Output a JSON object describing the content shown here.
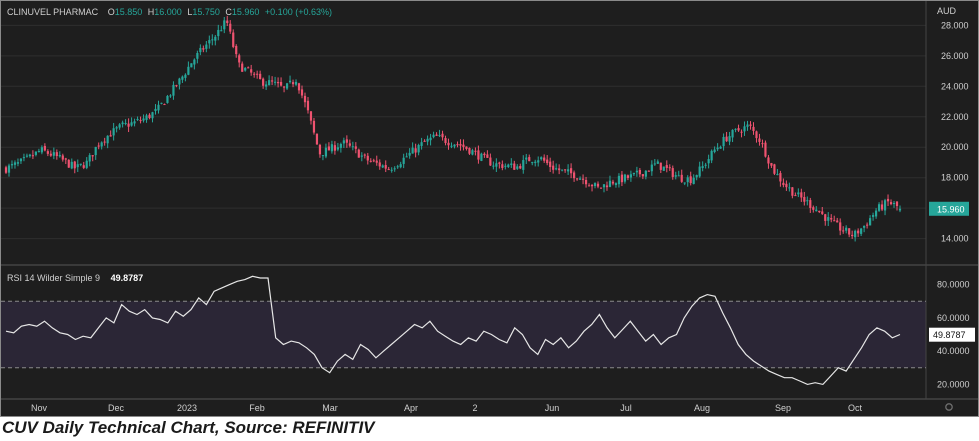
{
  "header": {
    "symbol": "CLINUVEL PHARMAC",
    "open_label": "O",
    "open": "15.850",
    "high_label": "H",
    "high": "16.000",
    "low_label": "L",
    "low": "15.750",
    "close_label": "C",
    "close": "15.960",
    "change": "+0.100 (+0.63%)",
    "currency": "AUD"
  },
  "rsi_header": {
    "label": "RSI 14 Wilder Simple 9",
    "value": "49.8787"
  },
  "caption": "CUV Daily Technical Chart, Source: REFINITIV",
  "colors": {
    "up": "#26a69a",
    "down": "#ef5370",
    "background": "#1e1e1e",
    "rsi_band": "#2b2636",
    "rsi_line": "#e6e6e6"
  },
  "chart_data": [
    {
      "type": "candlestick",
      "title": "CLINUVEL PHARMAC",
      "y_axis_unit": "AUD",
      "yticks": [
        "14.000",
        "16.000",
        "18.000",
        "20.000",
        "22.000",
        "24.000",
        "26.000",
        "28.000"
      ],
      "ylim": [
        12.4,
        29.6
      ],
      "last_price_label": "15.960",
      "xticks": [
        "Nov",
        "Dec",
        "2023",
        "Feb",
        "Mar",
        "Apr",
        "2",
        "Jun",
        "Jul",
        "Aug",
        "Sep",
        "Oct"
      ],
      "path_close": [
        18.6,
        18.9,
        19.3,
        19.8,
        19.5,
        19.1,
        18.6,
        19.0,
        20.3,
        20.9,
        21.4,
        21.6,
        21.9,
        22.4,
        23.4,
        24.4,
        25.6,
        26.5,
        27.3,
        28.3,
        25.4,
        24.9,
        24.3,
        24.2,
        23.8,
        24.5,
        22.3,
        19.6,
        19.9,
        20.3,
        19.8,
        19.2,
        18.9,
        18.6,
        19.1,
        19.7,
        20.3,
        20.7,
        20.4,
        20.2,
        19.8,
        19.3,
        18.9,
        18.8,
        18.7,
        19.2,
        19.3,
        18.7,
        18.4,
        18.2,
        17.8,
        17.3,
        17.7,
        17.9,
        18.1,
        18.4,
        18.9,
        18.5,
        18.0,
        17.9,
        18.7,
        19.8,
        20.6,
        21.1,
        21.4,
        20.4,
        18.6,
        17.6,
        16.9,
        16.4,
        15.8,
        15.1,
        14.6,
        14.2,
        14.9,
        15.9,
        16.4,
        16.0
      ],
      "rsi_panel": {
        "title": "RSI 14 Wilder Simple 9",
        "last_value": "49.8787",
        "yticks": [
          "20.0000",
          "40.0000",
          "60.0000",
          "80.0000"
        ],
        "ylim": [
          11.2,
          90.6
        ],
        "overbought": 70,
        "oversold": 30,
        "values": [
          52,
          51,
          55,
          56,
          55,
          58,
          54,
          51,
          50,
          47,
          49,
          48,
          54,
          60,
          57,
          68,
          64,
          62,
          65,
          60,
          59,
          57,
          64,
          61,
          65,
          72,
          68,
          76,
          78,
          80,
          82,
          83,
          85,
          84,
          84,
          48,
          44,
          46,
          45,
          42,
          38,
          30,
          27,
          34,
          38,
          35,
          44,
          41,
          36,
          40,
          44,
          48,
          52,
          56,
          54,
          58,
          52,
          49,
          46,
          44,
          48,
          46,
          52,
          50,
          47,
          45,
          54,
          50,
          42,
          38,
          47,
          44,
          48,
          42,
          46,
          52,
          56,
          62,
          54,
          48,
          53,
          58,
          52,
          46,
          50,
          44,
          48,
          50,
          60,
          67,
          72,
          74,
          73,
          63,
          54,
          44,
          38,
          34,
          31,
          28,
          26,
          24,
          24,
          22,
          20,
          21,
          20,
          25,
          30,
          28,
          35,
          42,
          50,
          54,
          52,
          48,
          50
        ]
      }
    }
  ]
}
